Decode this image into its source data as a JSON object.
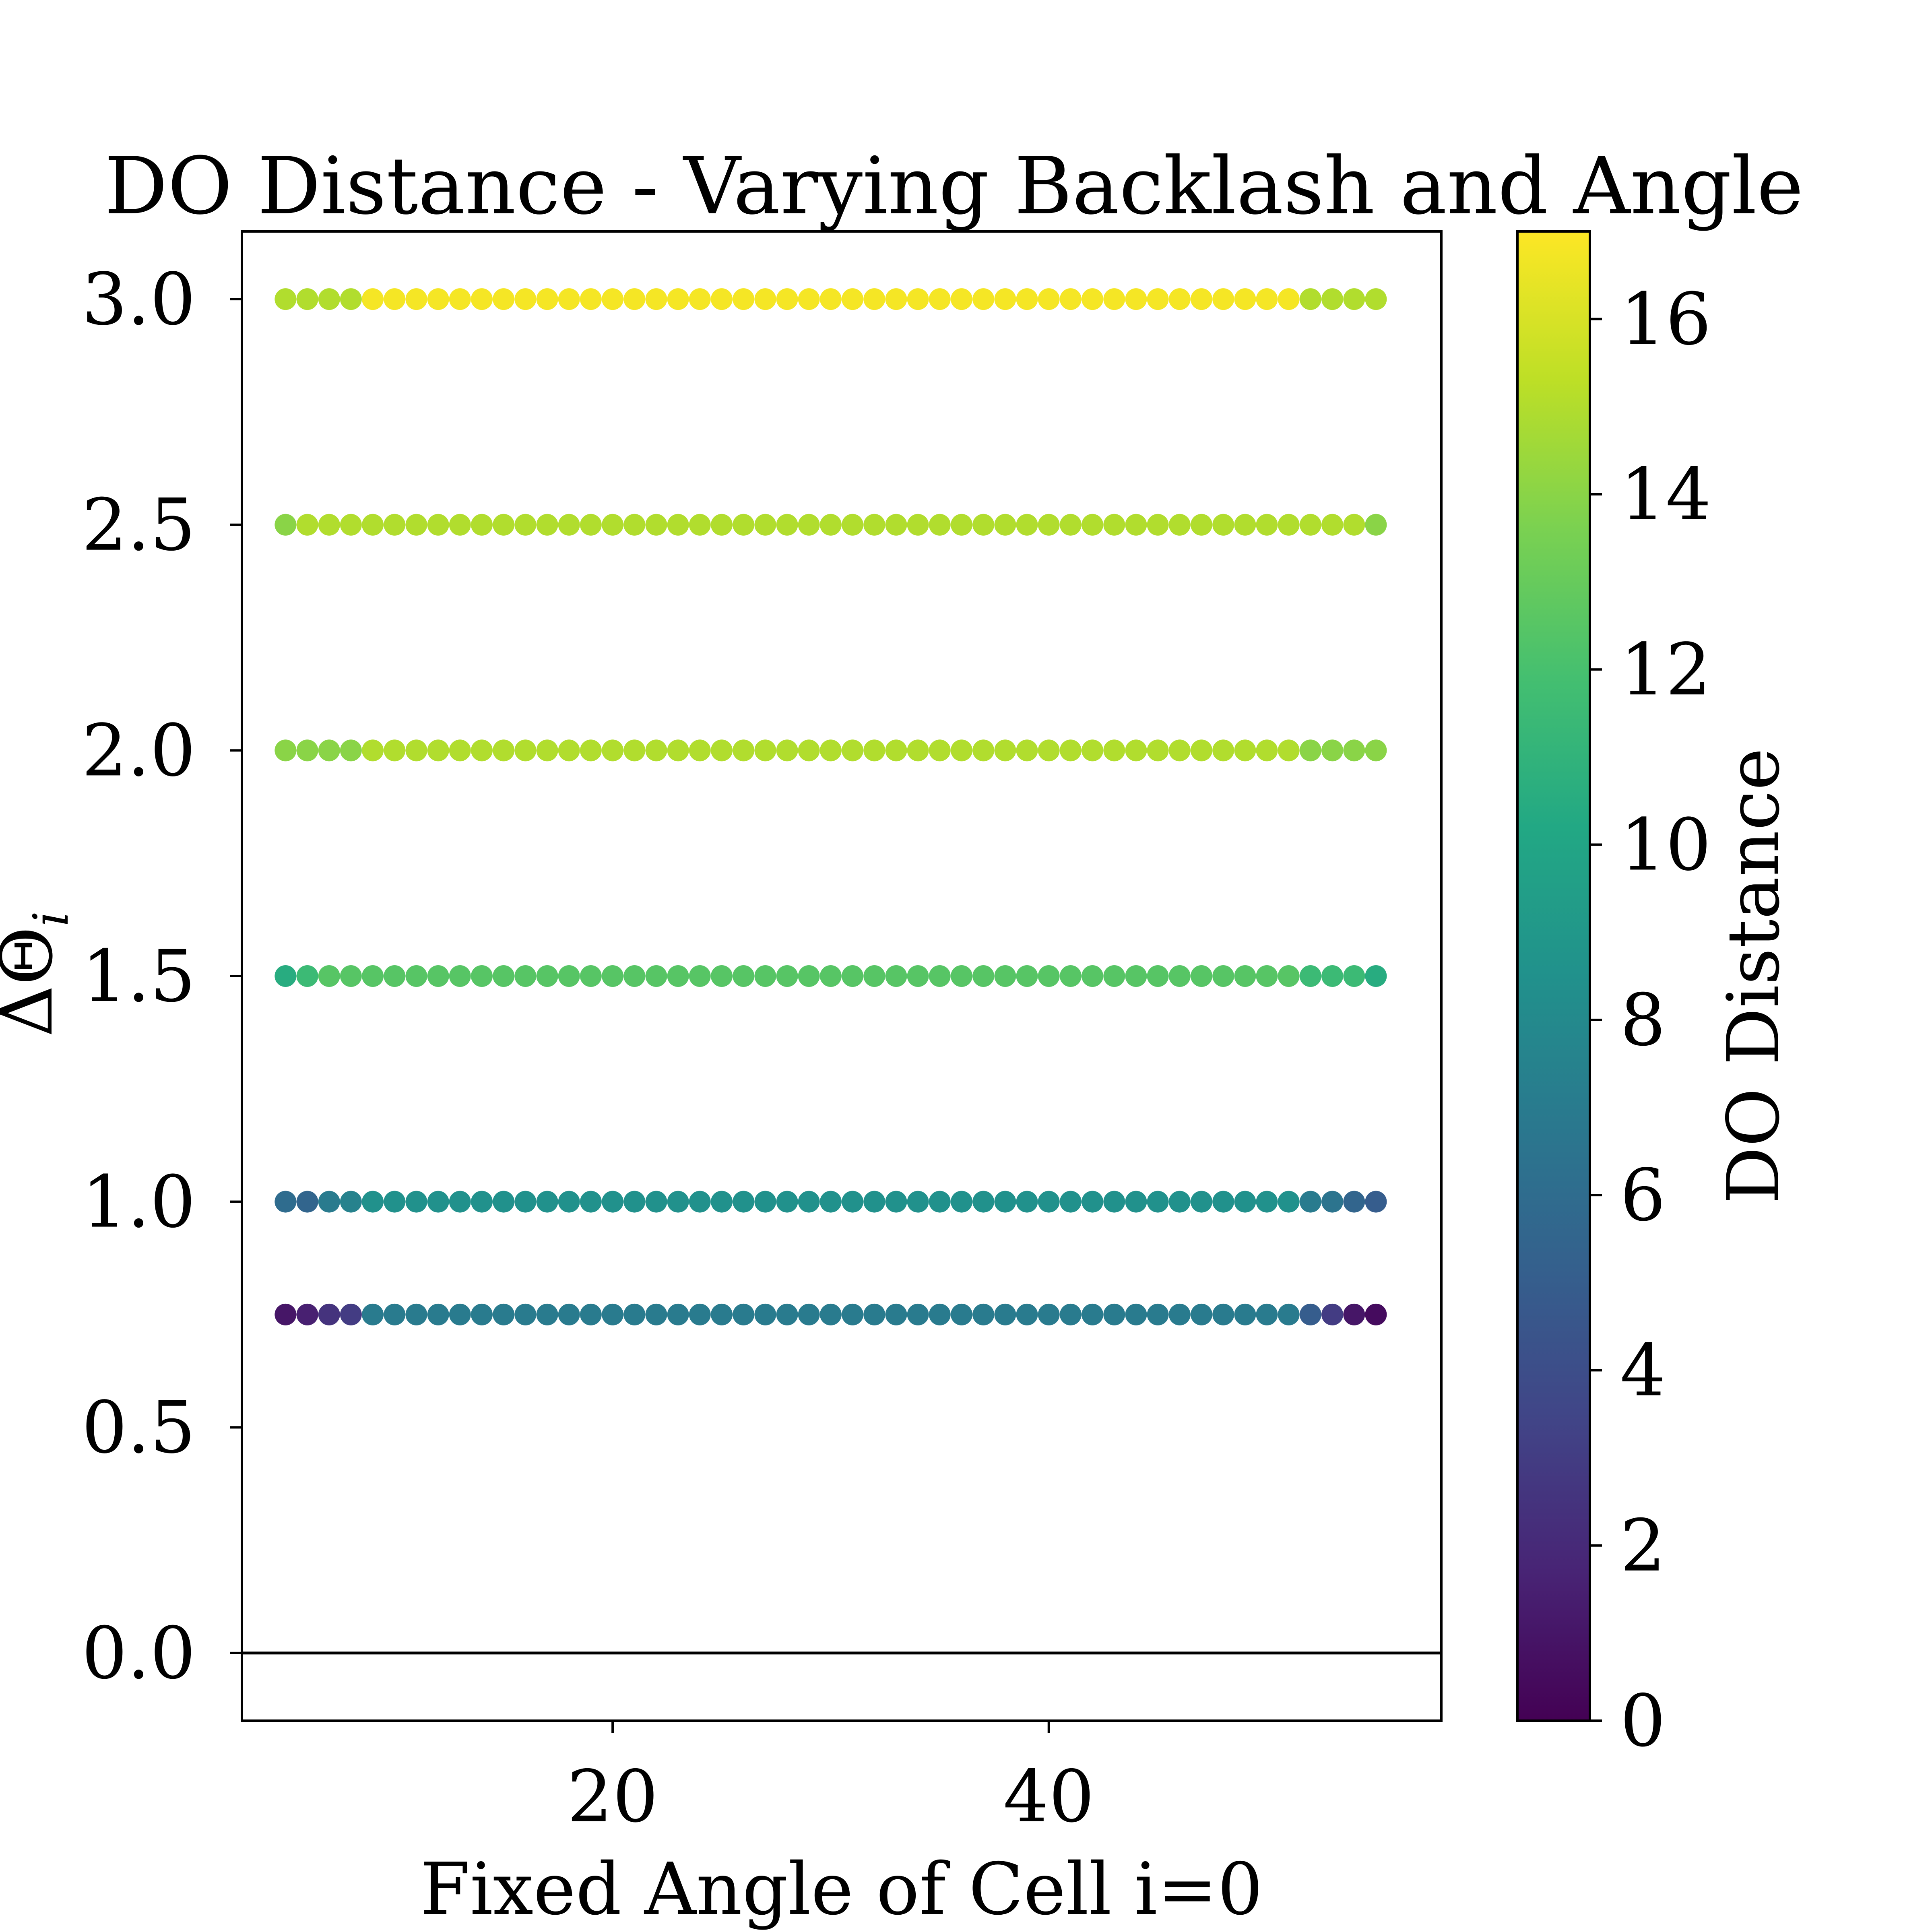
{
  "chart_data": {
    "type": "scatter",
    "title": "DO Distance - Varying Backlash and Angle",
    "xlabel": "Fixed Angle of Cell i=0",
    "ylabel": "ΔΘ",
    "ylabel_subscript": "i",
    "xlim": [
      3,
      58
    ],
    "ylim": [
      -0.15,
      3.15
    ],
    "x_ticks": [
      20,
      40
    ],
    "y_ticks": [
      0.0,
      0.5,
      1.0,
      1.5,
      2.0,
      2.5,
      3.0
    ],
    "y_tick_labels": [
      "0.0",
      "0.5",
      "1.0",
      "1.5",
      "2.0",
      "2.5",
      "3.0"
    ],
    "hline": 0.0,
    "colormap": "viridis",
    "colorbar": {
      "label": "DO Distance",
      "range": [
        0,
        17
      ],
      "ticks": [
        0,
        2,
        4,
        6,
        8,
        10,
        12,
        14,
        16
      ]
    },
    "x": [
      5,
      6,
      7,
      8,
      9,
      10,
      11,
      12,
      13,
      14,
      15,
      16,
      17,
      18,
      19,
      20,
      21,
      22,
      23,
      24,
      25,
      26,
      27,
      28,
      29,
      30,
      31,
      32,
      33,
      34,
      35,
      36,
      37,
      38,
      39,
      40,
      41,
      42,
      43,
      44,
      45,
      46,
      47,
      48,
      49,
      50,
      51,
      52,
      53,
      54,
      55
    ],
    "series": [
      {
        "y": 3.0,
        "edge_left": [
          15.0,
          15.0,
          15.0,
          15.0
        ],
        "middle": 16.8,
        "edge_right": [
          15.0,
          15.0,
          15.0,
          15.0
        ]
      },
      {
        "y": 2.5,
        "edge_left": [
          14.0,
          15.0,
          15.0,
          15.0
        ],
        "middle": 15.0,
        "edge_right": [
          15.0,
          15.0,
          15.0,
          14.0
        ]
      },
      {
        "y": 2.0,
        "edge_left": [
          14.0,
          14.0,
          14.0,
          14.0
        ],
        "middle": 15.0,
        "edge_right": [
          14.0,
          14.0,
          14.0,
          14.0
        ]
      },
      {
        "y": 1.5,
        "edge_left": [
          10.5,
          11.5,
          12.5,
          12.5
        ],
        "middle": 12.5,
        "edge_right": [
          11.5,
          11.5,
          11.5,
          10.5
        ]
      },
      {
        "y": 1.0,
        "edge_left": [
          6.0,
          5.5,
          7.0,
          7.5
        ],
        "middle": 8.5,
        "edge_right": [
          7.0,
          6.5,
          5.5,
          5.0
        ]
      },
      {
        "y": 0.75,
        "edge_left": [
          1.0,
          1.5,
          2.5,
          3.0
        ],
        "middle": 7.0,
        "edge_right": [
          5.0,
          3.0,
          1.0,
          0.5
        ]
      }
    ]
  }
}
